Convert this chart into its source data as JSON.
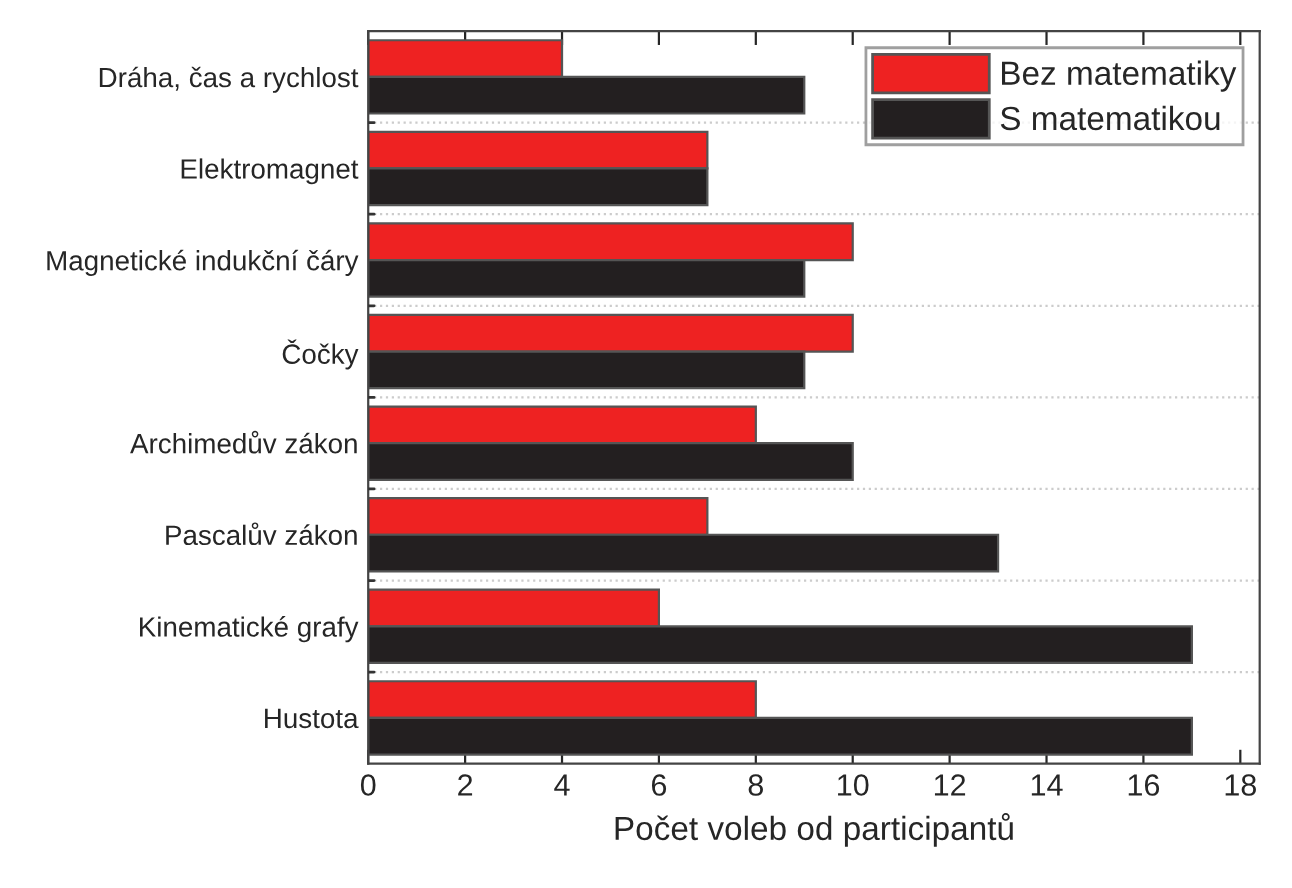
{
  "chart_data": {
    "type": "bar",
    "orientation": "horizontal",
    "xlabel": "Počet voleb od participantů",
    "categories": [
      "Dráha, čas a rychlost",
      "Elektromagnet",
      "Magnetické indukční čáry",
      "Čočky",
      "Archimedův zákon",
      "Pascalův zákon",
      "Kinematické grafy",
      "Hustota"
    ],
    "series": [
      {
        "name": "Bez matematiky",
        "color": "#ee2222",
        "values": [
          4,
          7,
          10,
          10,
          8,
          7,
          6,
          8
        ]
      },
      {
        "name": "S matematikou",
        "color": "#231f20",
        "values": [
          9,
          7,
          9,
          9,
          10,
          13,
          17,
          17
        ]
      }
    ],
    "xlim": [
      0,
      18.4
    ],
    "xticks": [
      0,
      2,
      4,
      6,
      8,
      10,
      12,
      14,
      16,
      18
    ],
    "grid": "y",
    "legend": "top right"
  }
}
